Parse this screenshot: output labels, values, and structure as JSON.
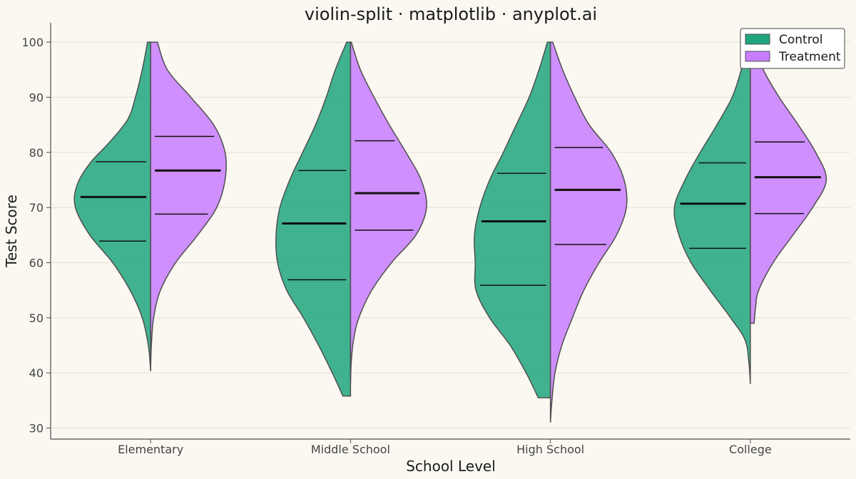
{
  "chart_data": {
    "type": "violin-split",
    "title": "violin-split · matplotlib · anyplot.ai",
    "xlabel": "School Level",
    "ylabel": "Test Score",
    "ylim": [
      28,
      103.5
    ],
    "yticks": [
      30,
      40,
      50,
      60,
      70,
      80,
      90,
      100
    ],
    "grid": "horizontal",
    "legend_position": "top-right",
    "categories": [
      "Elementary",
      "Middle School",
      "High School",
      "College"
    ],
    "series": [
      {
        "name": "Control",
        "color": "#1FA67F",
        "groups": [
          {
            "min": 40.5,
            "max": 100,
            "q1": 63.9,
            "median": 71.9,
            "q3": 78.3,
            "profile": [
              [
                40.5,
                0.0
              ],
              [
                45,
                0.03
              ],
              [
                50,
                0.11
              ],
              [
                55,
                0.27
              ],
              [
                60,
                0.5
              ],
              [
                65,
                0.8
              ],
              [
                70,
                0.99
              ],
              [
                74,
                0.97
              ],
              [
                78,
                0.8
              ],
              [
                82,
                0.53
              ],
              [
                86,
                0.3
              ],
              [
                90,
                0.2
              ],
              [
                95,
                0.11
              ],
              [
                100,
                0.04
              ]
            ]
          },
          {
            "min": 35.8,
            "max": 100,
            "q1": 56.9,
            "median": 67.1,
            "q3": 76.7,
            "profile": [
              [
                35.8,
                0.1
              ],
              [
                40,
                0.24
              ],
              [
                45,
                0.42
              ],
              [
                50,
                0.62
              ],
              [
                55,
                0.84
              ],
              [
                60,
                0.96
              ],
              [
                65,
                0.98
              ],
              [
                70,
                0.93
              ],
              [
                75,
                0.8
              ],
              [
                80,
                0.63
              ],
              [
                85,
                0.46
              ],
              [
                90,
                0.32
              ],
              [
                95,
                0.2
              ],
              [
                100,
                0.05
              ]
            ]
          },
          {
            "min": 35.5,
            "max": 100,
            "q1": 55.9,
            "median": 67.5,
            "q3": 76.2,
            "profile": [
              [
                35.5,
                0.16
              ],
              [
                40,
                0.32
              ],
              [
                45,
                0.53
              ],
              [
                50,
                0.8
              ],
              [
                55,
                0.98
              ],
              [
                60,
                0.99
              ],
              [
                65,
                1.0
              ],
              [
                70,
                0.93
              ],
              [
                75,
                0.8
              ],
              [
                80,
                0.62
              ],
              [
                85,
                0.45
              ],
              [
                90,
                0.28
              ],
              [
                95,
                0.15
              ],
              [
                100,
                0.04
              ]
            ]
          },
          {
            "min": 38.0,
            "max": 98.3,
            "q1": 62.6,
            "median": 70.7,
            "q3": 78.1,
            "profile": [
              [
                38,
                0.0
              ],
              [
                42,
                0.02
              ],
              [
                46,
                0.07
              ],
              [
                50,
                0.26
              ],
              [
                55,
                0.53
              ],
              [
                60,
                0.78
              ],
              [
                65,
                0.94
              ],
              [
                70,
                1.0
              ],
              [
                75,
                0.86
              ],
              [
                80,
                0.66
              ],
              [
                85,
                0.44
              ],
              [
                90,
                0.24
              ],
              [
                95,
                0.12
              ],
              [
                98.3,
                0.08
              ]
            ]
          }
        ]
      },
      {
        "name": "Treatment",
        "color": "#C77DFF",
        "groups": [
          {
            "min": 40.3,
            "max": 100,
            "q1": 68.8,
            "median": 76.7,
            "q3": 82.9,
            "profile": [
              [
                40.3,
                0.0
              ],
              [
                45,
                0.01
              ],
              [
                50,
                0.04
              ],
              [
                55,
                0.13
              ],
              [
                60,
                0.33
              ],
              [
                65,
                0.62
              ],
              [
                70,
                0.87
              ],
              [
                75,
                0.98
              ],
              [
                80,
                0.98
              ],
              [
                85,
                0.83
              ],
              [
                90,
                0.53
              ],
              [
                95,
                0.22
              ],
              [
                100,
                0.09
              ]
            ]
          },
          {
            "min": 37.9,
            "max": 100,
            "q1": 65.9,
            "median": 72.6,
            "q3": 82.1,
            "profile": [
              [
                37.9,
                0.0
              ],
              [
                42,
                0.01
              ],
              [
                46,
                0.04
              ],
              [
                50,
                0.11
              ],
              [
                55,
                0.28
              ],
              [
                60,
                0.54
              ],
              [
                65,
                0.86
              ],
              [
                70,
                1.0
              ],
              [
                75,
                0.93
              ],
              [
                80,
                0.73
              ],
              [
                85,
                0.51
              ],
              [
                90,
                0.31
              ],
              [
                95,
                0.13
              ],
              [
                100,
                0.01
              ]
            ]
          },
          {
            "min": 31.0,
            "max": 100,
            "q1": 63.3,
            "median": 73.2,
            "q3": 80.9,
            "profile": [
              [
                31,
                0.0
              ],
              [
                35,
                0.02
              ],
              [
                40,
                0.06
              ],
              [
                45,
                0.15
              ],
              [
                50,
                0.29
              ],
              [
                55,
                0.44
              ],
              [
                60,
                0.64
              ],
              [
                65,
                0.87
              ],
              [
                70,
                1.0
              ],
              [
                75,
                0.97
              ],
              [
                80,
                0.8
              ],
              [
                85,
                0.51
              ],
              [
                90,
                0.32
              ],
              [
                95,
                0.16
              ],
              [
                100,
                0.03
              ]
            ]
          },
          {
            "min": 49.0,
            "max": 100,
            "q1": 68.9,
            "median": 75.5,
            "q3": 81.9,
            "profile": [
              [
                49,
                0.05
              ],
              [
                52,
                0.07
              ],
              [
                55,
                0.11
              ],
              [
                60,
                0.3
              ],
              [
                65,
                0.56
              ],
              [
                70,
                0.82
              ],
              [
                75,
                1.0
              ],
              [
                80,
                0.86
              ],
              [
                85,
                0.63
              ],
              [
                90,
                0.38
              ],
              [
                95,
                0.17
              ],
              [
                100,
                0.04
              ]
            ]
          }
        ]
      }
    ]
  }
}
